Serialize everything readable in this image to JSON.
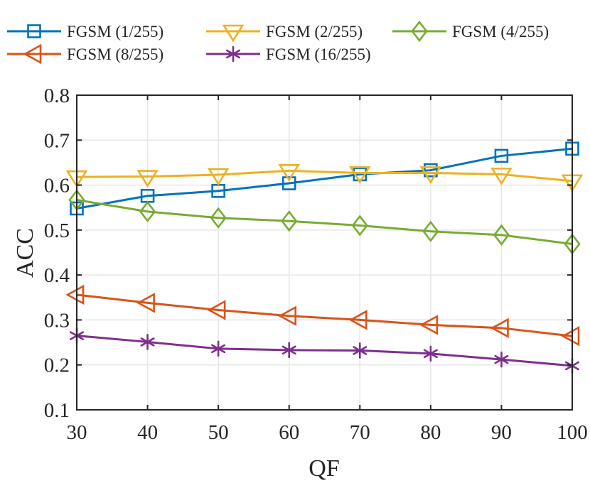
{
  "chart_data": {
    "type": "line",
    "title": "",
    "xlabel": "QF",
    "ylabel": "ACC",
    "x": [
      30,
      40,
      50,
      60,
      70,
      80,
      90,
      100
    ],
    "xlim": [
      30,
      100
    ],
    "ylim": [
      0.1,
      0.8
    ],
    "xticks": [
      "30",
      "40",
      "50",
      "60",
      "70",
      "80",
      "90",
      "100"
    ],
    "yticks": [
      "0.1",
      "0.2",
      "0.3",
      "0.4",
      "0.5",
      "0.6",
      "0.7",
      "0.8"
    ],
    "grid": true,
    "legend_position": "top",
    "series": [
      {
        "name": "FGSM (1/255)",
        "color": "#0072BD",
        "marker": "square",
        "values": [
          0.548,
          0.576,
          0.587,
          0.604,
          0.624,
          0.633,
          0.665,
          0.681
        ]
      },
      {
        "name": "FGSM (2/255)",
        "color": "#EDB120",
        "marker": "triangle-down",
        "values": [
          0.618,
          0.619,
          0.623,
          0.632,
          0.627,
          0.627,
          0.624,
          0.609
        ]
      },
      {
        "name": "FGSM (4/255)",
        "color": "#77AC30",
        "marker": "diamond",
        "values": [
          0.567,
          0.541,
          0.527,
          0.52,
          0.51,
          0.497,
          0.489,
          0.469
        ]
      },
      {
        "name": "FGSM (8/255)",
        "color": "#D95319",
        "marker": "triangle-left",
        "values": [
          0.356,
          0.338,
          0.322,
          0.309,
          0.3,
          0.289,
          0.282,
          0.264
        ]
      },
      {
        "name": "FGSM (16/255)",
        "color": "#7E2F8E",
        "marker": "asterisk",
        "values": [
          0.265,
          0.251,
          0.236,
          0.233,
          0.232,
          0.225,
          0.212,
          0.198
        ]
      }
    ]
  }
}
